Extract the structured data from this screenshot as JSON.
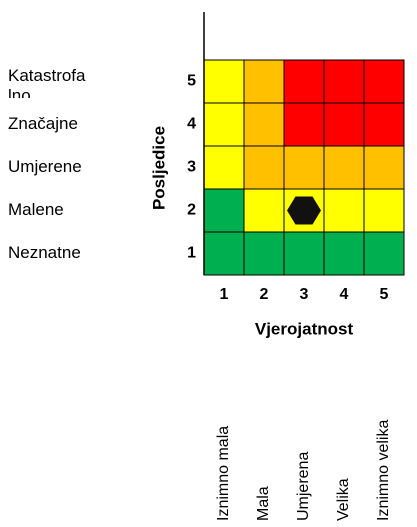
{
  "y_axis": {
    "title": "Posljedice",
    "numbers": [
      5,
      4,
      3,
      2,
      1
    ],
    "labels": [
      "Katastrofalno",
      "Značajne",
      "Umjerene",
      "Malene",
      "Neznatne"
    ]
  },
  "x_axis": {
    "title": "Vjerojatnost",
    "numbers": [
      1,
      2,
      3,
      4,
      5
    ],
    "labels": [
      "Iznimno mala",
      "Mala",
      "Umjerena",
      "Velika",
      "Iznimno velika"
    ]
  },
  "cells": [
    [
      "#ffff00",
      "#ffc000",
      "#ff0000",
      "#ff0000",
      "#ff0000"
    ],
    [
      "#ffff00",
      "#ffc000",
      "#ff0000",
      "#ff0000",
      "#ff0000"
    ],
    [
      "#ffff00",
      "#ffc000",
      "#ffc000",
      "#ffc000",
      "#ffc000"
    ],
    [
      "#00b050",
      "#ffff00",
      "#ffff00",
      "#ffff00",
      "#ffff00"
    ],
    [
      "#00b050",
      "#00b050",
      "#00b050",
      "#00b050",
      "#00b050"
    ]
  ],
  "marker": {
    "likelihood": 3,
    "consequence": 2
  }
}
